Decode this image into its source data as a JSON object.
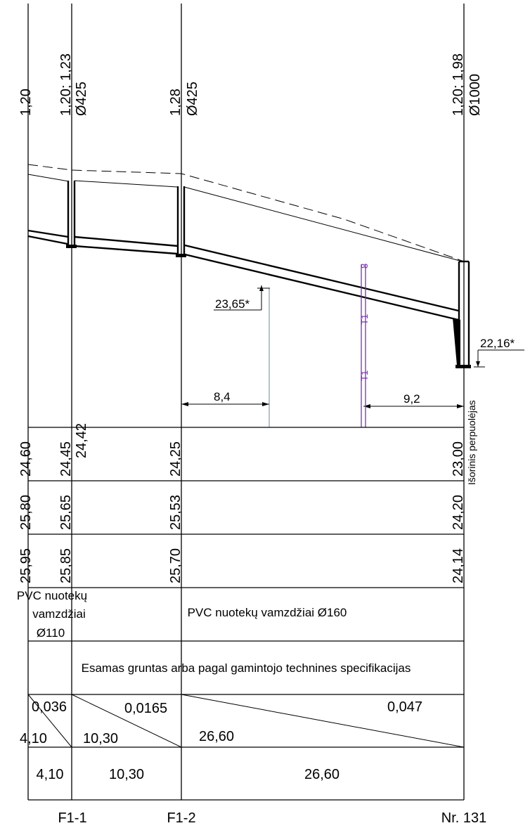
{
  "top_labels": {
    "ground_0": "1,20",
    "ground_1": "1,20; 1,23",
    "diam_1": "Ø425",
    "ground_2": "1,28",
    "diam_2": "Ø425",
    "ground_3": "1,20; 1,98",
    "diam_3": "Ø1000"
  },
  "annotations": {
    "level_left": "23,65*",
    "level_right": "22,16*",
    "dist_left": "8,4",
    "dist_right": "9,2",
    "crossing_text": "Išorinis perpuolėjas",
    "utility_line_label": "T1",
    "utility_symbol": "8"
  },
  "table": {
    "row1": [
      "24,60",
      "24,45",
      "24,42",
      "24,25",
      "23,00"
    ],
    "row2": [
      "25,80",
      "25,65",
      "25,53",
      "24,20"
    ],
    "row3": [
      "25,95",
      "25,85",
      "25,70",
      "24,14"
    ],
    "pipe_left_line1": "PVC nuotekų",
    "pipe_left_line2": "vamzdžiai",
    "pipe_left_line3": "Ø110",
    "pipe_main": "PVC nuotekų vamzdžiai Ø160",
    "soil": "Esamas gruntas arba pagal gamintojo technines specifikacijas",
    "slope_1": "0,036",
    "slope_2": "0,0165",
    "slope_3": "0,047",
    "len_diag_1": "4,10",
    "len_diag_2": "10,30",
    "len_diag_3": "26,60",
    "len_1": "4,10",
    "len_2": "10,30",
    "len_3": "26,60"
  },
  "stations": {
    "s1": "F1-1",
    "s2": "F1-2",
    "s3": "Nr. 131"
  }
}
